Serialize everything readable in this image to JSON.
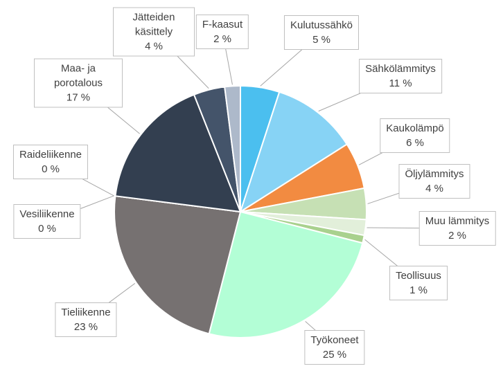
{
  "chart_data": {
    "type": "pie",
    "categories": [
      "Kulutussähkö",
      "Sähkölämmitys",
      "Kaukolämpö",
      "Öljylämmitys",
      "Muu lämmitys",
      "Teollisuus",
      "Työkoneet",
      "Tieliikenne",
      "Vesiliikenne",
      "Raideliikenne",
      "Maa- ja porotalous",
      "Jätteiden käsittely",
      "F-kaasut"
    ],
    "values": [
      5,
      11,
      6,
      4,
      2,
      1,
      25,
      23,
      0,
      0,
      17,
      4,
      2
    ],
    "value_labels": [
      "5 %",
      "11 %",
      "6 %",
      "4 %",
      "2 %",
      "1 %",
      "25 %",
      "23 %",
      "0 %",
      "0 %",
      "17 %",
      "4 %",
      "2 %"
    ],
    "colors": [
      "#4bbfef",
      "#87d3f5",
      "#f28b41",
      "#c6e0b4",
      "#e2efda",
      "#a9d18e",
      "#b3fed6",
      "#767171",
      "#bfbfbf",
      "#a6a6a6",
      "#333f50",
      "#44546a",
      "#adb9ca"
    ]
  }
}
